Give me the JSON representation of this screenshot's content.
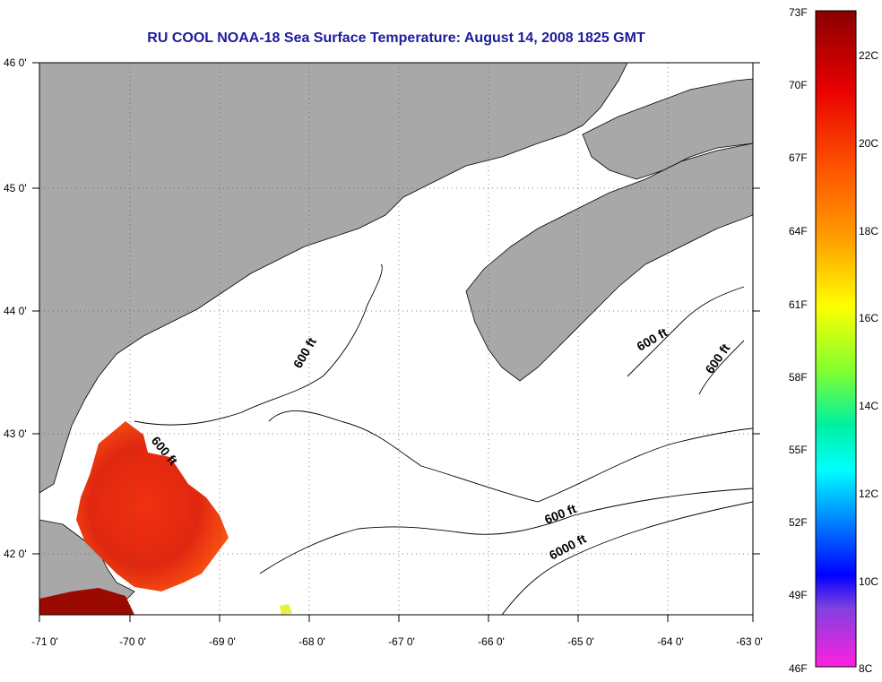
{
  "title": "RU COOL  NOAA-18  Sea Surface Temperature:  August 14, 2008 1825 GMT",
  "colors": {
    "land": "#a8a8a8",
    "water": "#ffffff",
    "frame": "#000000",
    "title": "#1c1c9c"
  },
  "axes": {
    "lon": [
      "-71 0'",
      "-70 0'",
      "-69 0'",
      "-68 0'",
      "-67 0'",
      "-66 0'",
      "-65 0'",
      "-64 0'",
      "-63 0'"
    ],
    "lat": [
      "46 0'",
      "45 0'",
      "44 0'",
      "43 0'",
      "42 0'"
    ]
  },
  "colorbar": {
    "fahrenheit": [
      "73F",
      "70F",
      "67F",
      "64F",
      "61F",
      "58F",
      "55F",
      "52F",
      "49F",
      "46F"
    ],
    "celsius": [
      "22C",
      "20C",
      "18C",
      "16C",
      "14C",
      "12C",
      "10C",
      "8C"
    ]
  },
  "contours": [
    {
      "label": "600 ft"
    },
    {
      "label": "600 ft"
    },
    {
      "label": "600 ft"
    },
    {
      "label": "600 ft"
    },
    {
      "label": "600 ft"
    },
    {
      "label": "6000 ft"
    }
  ]
}
